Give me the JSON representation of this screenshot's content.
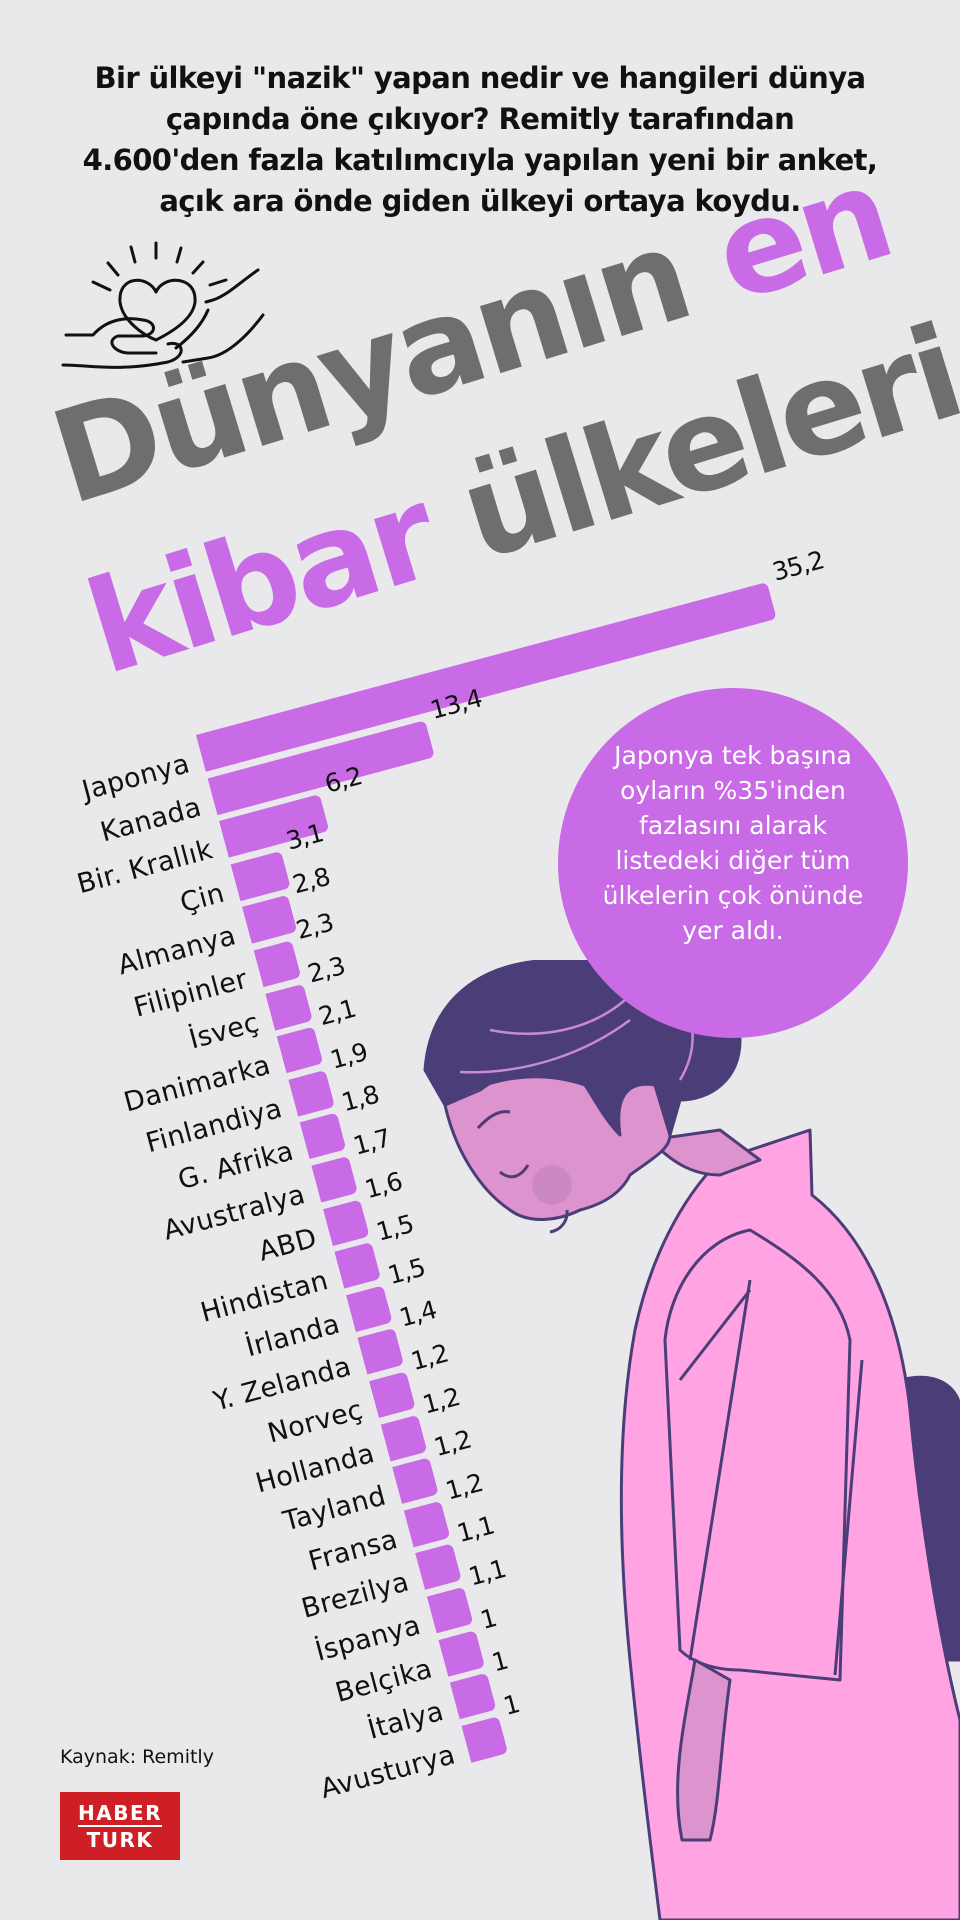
{
  "intro": {
    "lines": [
      "Bir ülkeyi \"nazik\" yapan nedir ve hangileri dünya",
      "çapında öne çıkıyor? Remitly tarafından",
      "4.600'den fazla katılımcıyla yapılan yeni bir anket,",
      "açık ara önde giden ülkeyi ortaya koydu."
    ]
  },
  "title": {
    "line1_main": "Dünyanın",
    "line1_accent": "en",
    "line2_accent": "kibar",
    "line2_main": "ülkeleri"
  },
  "callout": {
    "text": "Japonya tek başına oyların %35'inden fazlasını alarak listedeki diğer tüm ülkelerin çok önünde yer aldı."
  },
  "colors": {
    "background": "#e9e9eb",
    "bar": "#c96ae6",
    "title_gray": "#6e6e6e",
    "hair": "#4a3d78",
    "kimono": "#ffa3e3",
    "skin": "#dd93cd",
    "logo_red": "#cf1f26"
  },
  "chart_data": {
    "type": "bar",
    "orientation": "horizontal",
    "title": "Dünyanın en kibar ülkeleri",
    "xlabel": "",
    "ylabel": "",
    "categories": [
      "Japonya",
      "Kanada",
      "Bir. Krallık",
      "Çin",
      "Almanya",
      "Filipinler",
      "İsveç",
      "Danimarka",
      "Finlandiya",
      "G. Afrika",
      "Avustralya",
      "ABD",
      "Hindistan",
      "İrlanda",
      "Y. Zelanda",
      "Norveç",
      "Hollanda",
      "Tayland",
      "Fransa",
      "Brezilya",
      "İspanya",
      "Belçika",
      "İtalya",
      "Avusturya"
    ],
    "values": [
      35.2,
      13.4,
      6.2,
      3.1,
      2.8,
      2.3,
      2.3,
      2.1,
      1.9,
      1.8,
      1.7,
      1.6,
      1.5,
      1.5,
      1.4,
      1.2,
      1.2,
      1.2,
      1.2,
      1.1,
      1.1,
      1,
      1,
      1
    ],
    "value_labels": [
      "35,2",
      "13,4",
      "6,2",
      "3,1",
      "2,8",
      "2,3",
      "2,3",
      "2,1",
      "1,9",
      "1,8",
      "1,7",
      "1,6",
      "1,5",
      "1,5",
      "1,4",
      "1,2",
      "1,2",
      "1,2",
      "1,2",
      "1,1",
      "1,1",
      "1",
      "1",
      "1"
    ],
    "grid": false,
    "legend": "none",
    "unit": "%"
  },
  "footer": {
    "source": "Kaynak: Remitly",
    "logo_line1": "HABER",
    "logo_line2": "TURK"
  }
}
